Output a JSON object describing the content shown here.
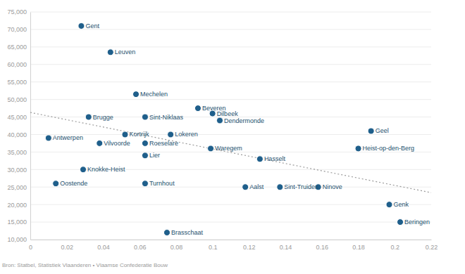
{
  "chart_data": {
    "type": "scatter",
    "labels": [
      "Gent",
      "Leuven",
      "Mechelen",
      "Brugge",
      "Sint-Niklaas",
      "Beveren",
      "Dilbeek",
      "Dendermonde",
      "Kortrijk",
      "Roeselare",
      "Lokeren",
      "Vilvoorde",
      "Antwerpen",
      "Lier",
      "Waregem",
      "Hasselt",
      "Knokke-Heist",
      "Oostende",
      "Turnhout",
      "Brasschaat",
      "Aalst",
      "Sint-Truiden",
      "Ninove",
      "Geel",
      "Heist-op-den-Berg",
      "Genk",
      "Beringen"
    ],
    "x": [
      0.028,
      0.044,
      0.058,
      0.032,
      0.063,
      0.092,
      0.1,
      0.104,
      0.052,
      0.063,
      0.077,
      0.038,
      0.01,
      0.063,
      0.099,
      0.126,
      0.029,
      0.014,
      0.063,
      0.075,
      0.118,
      0.137,
      0.158,
      0.187,
      0.18,
      0.197,
      0.203
    ],
    "y": [
      71000,
      63500,
      51500,
      45000,
      45000,
      47500,
      46000,
      44000,
      40000,
      37500,
      40000,
      37500,
      39000,
      34000,
      36000,
      33000,
      30000,
      26000,
      26000,
      12000,
      25000,
      25000,
      25000,
      41000,
      36000,
      20000,
      15000
    ],
    "color": "#1f5f8b",
    "marker": "circle",
    "trend_line": {
      "x": [
        0,
        0.22
      ],
      "y": [
        46300,
        23400
      ],
      "line_style": "dotted"
    },
    "xlim": [
      0,
      0.22
    ],
    "xticks": [
      0,
      0.02,
      0.04,
      0.06,
      0.08,
      0.1,
      0.12,
      0.14,
      0.16,
      0.18,
      0.2,
      0.22
    ],
    "ylim": [
      10000,
      75000
    ],
    "yticks": [
      {
        "value": 10000,
        "label": "10,000"
      },
      {
        "value": 15000,
        "label": "15,000"
      },
      {
        "value": 20000,
        "label": "20,000"
      },
      {
        "value": 25000,
        "label": "25,000"
      },
      {
        "value": 30000,
        "label": "30,000"
      },
      {
        "value": 35000,
        "label": "35,000"
      },
      {
        "value": 40000,
        "label": "40,000"
      },
      {
        "value": 45000,
        "label": "45,000"
      },
      {
        "value": 50000,
        "label": "50,000"
      },
      {
        "value": 55000,
        "label": "55,000"
      },
      {
        "value": 60000,
        "label": "60,000"
      },
      {
        "value": 65000,
        "label": "65,000"
      },
      {
        "value": 70000,
        "label": "70,000"
      },
      {
        "value": 75000,
        "label": "75,000"
      }
    ],
    "grid": true,
    "source": "Bron: Statbel, Statistiek Vlaanderen • Vlaamse Confederatie Bouw"
  }
}
